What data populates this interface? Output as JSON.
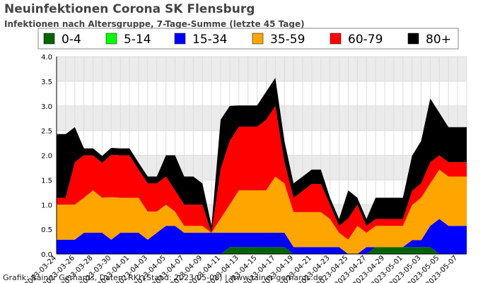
{
  "header": {
    "title": "Neuinfektionen Corona SK Flensburg",
    "subtitle": "Infektionen nach Altersgruppe, 7-Tage-Summe (letzte 45 Tage)"
  },
  "footer": {
    "credit": "Grafik: Rainer Gerhards, Daten: RKI (Stand: 2023-05-08) | www.rainer-gerhards.de"
  },
  "chart_data": {
    "type": "area",
    "stacked": true,
    "title": "Neuinfektionen Corona SK Flensburg",
    "subtitle": "Infektionen nach Altersgruppe, 7-Tage-Summe (letzte 45 Tage)",
    "ylim": [
      0,
      4.0
    ],
    "yticks": [
      0.0,
      0.5,
      1.0,
      1.5,
      2.0,
      2.5,
      3.0,
      3.5,
      4.0
    ],
    "grid": true,
    "legend_position": "top",
    "x": [
      "2023-03-24",
      "2023-03-25",
      "2023-03-26",
      "2023-03-27",
      "2023-03-28",
      "2023-03-29",
      "2023-03-30",
      "2023-03-31",
      "2023-04-01",
      "2023-04-02",
      "2023-04-03",
      "2023-04-04",
      "2023-04-05",
      "2023-04-06",
      "2023-04-07",
      "2023-04-08",
      "2023-04-09",
      "2023-04-10",
      "2023-04-11",
      "2023-04-12",
      "2023-04-13",
      "2023-04-14",
      "2023-04-15",
      "2023-04-16",
      "2023-04-17",
      "2023-04-18",
      "2023-04-19",
      "2023-04-20",
      "2023-04-21",
      "2023-04-22",
      "2023-04-23",
      "2023-04-24",
      "2023-04-25",
      "2023-04-26",
      "2023-04-27",
      "2023-04-28",
      "2023-04-29",
      "2023-04-30",
      "2023-05-01",
      "2023-05-02",
      "2023-05-03",
      "2023-05-04",
      "2023-05-05",
      "2023-05-06",
      "2023-05-07",
      "2023-05-08"
    ],
    "xtick_labels": [
      "2023-03-24",
      "2023-03-26",
      "2023-03-28",
      "2023-03-30",
      "2023-04-01",
      "2023-04-03",
      "2023-04-05",
      "2023-04-07",
      "2023-04-09",
      "2023-04-11",
      "2023-04-13",
      "2023-04-15",
      "2023-04-17",
      "2023-04-19",
      "2023-04-21",
      "2023-04-23",
      "2023-04-25",
      "2023-04-27",
      "2023-04-29",
      "2023-05-01",
      "2023-05-03",
      "2023-05-05",
      "2023-05-07"
    ],
    "series": [
      {
        "name": "0-4",
        "color": "#006400",
        "values": [
          0,
          0,
          0,
          0,
          0,
          0,
          0,
          0,
          0,
          0,
          0,
          0,
          0,
          0,
          0,
          0,
          0,
          0,
          0,
          0.14,
          0.14,
          0.14,
          0.14,
          0.14,
          0.14,
          0.14,
          0,
          0,
          0,
          0,
          0,
          0,
          0,
          0,
          0,
          0.14,
          0.14,
          0.14,
          0.14,
          0.14,
          0.14,
          0.14,
          0,
          0,
          0,
          0
        ]
      },
      {
        "name": "5-14",
        "color": "#00ff00",
        "values": [
          0,
          0,
          0,
          0,
          0,
          0,
          0,
          0,
          0,
          0,
          0,
          0,
          0,
          0,
          0,
          0,
          0,
          0,
          0,
          0,
          0,
          0,
          0,
          0,
          0,
          0,
          0,
          0,
          0,
          0,
          0,
          0,
          0,
          0,
          0,
          0,
          0,
          0,
          0,
          0,
          0,
          0,
          0,
          0,
          0,
          0
        ]
      },
      {
        "name": "15-34",
        "color": "#0000ff",
        "values": [
          0.29,
          0.29,
          0.29,
          0.43,
          0.43,
          0.43,
          0.29,
          0.43,
          0.43,
          0.43,
          0.29,
          0.43,
          0.57,
          0.57,
          0.43,
          0.43,
          0.43,
          0.43,
          0.43,
          0.29,
          0.29,
          0.29,
          0.29,
          0.29,
          0.29,
          0.29,
          0.14,
          0.14,
          0.14,
          0.14,
          0.14,
          0.14,
          0,
          0,
          0.14,
          0,
          0,
          0,
          0,
          0.14,
          0.14,
          0.43,
          0.71,
          0.57,
          0.57,
          0.57
        ]
      },
      {
        "name": "35-59",
        "color": "#ffa500",
        "values": [
          0.71,
          0.71,
          0.71,
          0.71,
          0.86,
          0.71,
          0.86,
          0.71,
          0.71,
          0.71,
          0.57,
          0.43,
          0.43,
          0.29,
          0.14,
          0.14,
          0.14,
          0.0,
          0.29,
          0.57,
          0.86,
          0.86,
          0.86,
          0.86,
          1.14,
          1.0,
          0.71,
          0.71,
          0.71,
          0.71,
          0.57,
          0.29,
          0.29,
          0.57,
          0.29,
          0.43,
          0.43,
          0.43,
          0.43,
          0.71,
          0.86,
          0.86,
          1.0,
          1.0,
          1.0,
          1.0
        ]
      },
      {
        "name": "60-79",
        "color": "#ff0000",
        "values": [
          0.14,
          0.14,
          0.86,
          0.86,
          0.71,
          0.71,
          0.86,
          0.86,
          0.86,
          0.57,
          0.57,
          0.57,
          0.57,
          0.43,
          0.43,
          0.43,
          0.43,
          0,
          1.0,
          1.29,
          1.29,
          1.29,
          1.29,
          1.43,
          1.43,
          0.43,
          0.29,
          0.43,
          0.57,
          0.57,
          0.29,
          0.14,
          0.43,
          0.43,
          0.14,
          0.14,
          0.14,
          0.14,
          0.14,
          0.29,
          0.29,
          0.43,
          0.29,
          0.29,
          0.29,
          0.29
        ]
      },
      {
        "name": "80+",
        "color": "#000000",
        "values": [
          1.29,
          1.29,
          0.71,
          0.14,
          0.14,
          0.14,
          0.14,
          0.14,
          0.14,
          0.14,
          0.14,
          0.14,
          0.43,
          0.71,
          0.57,
          0.57,
          0.43,
          0.14,
          1.0,
          0.71,
          0.43,
          0.43,
          0.43,
          0.57,
          0.57,
          0.43,
          0.29,
          0.29,
          0.29,
          0.29,
          0.14,
          0.14,
          0.57,
          0.14,
          0.14,
          0.43,
          0.43,
          0.43,
          0.43,
          0.71,
          0.86,
          1.29,
          0.86,
          0.71,
          0.71,
          0.71
        ]
      }
    ]
  }
}
